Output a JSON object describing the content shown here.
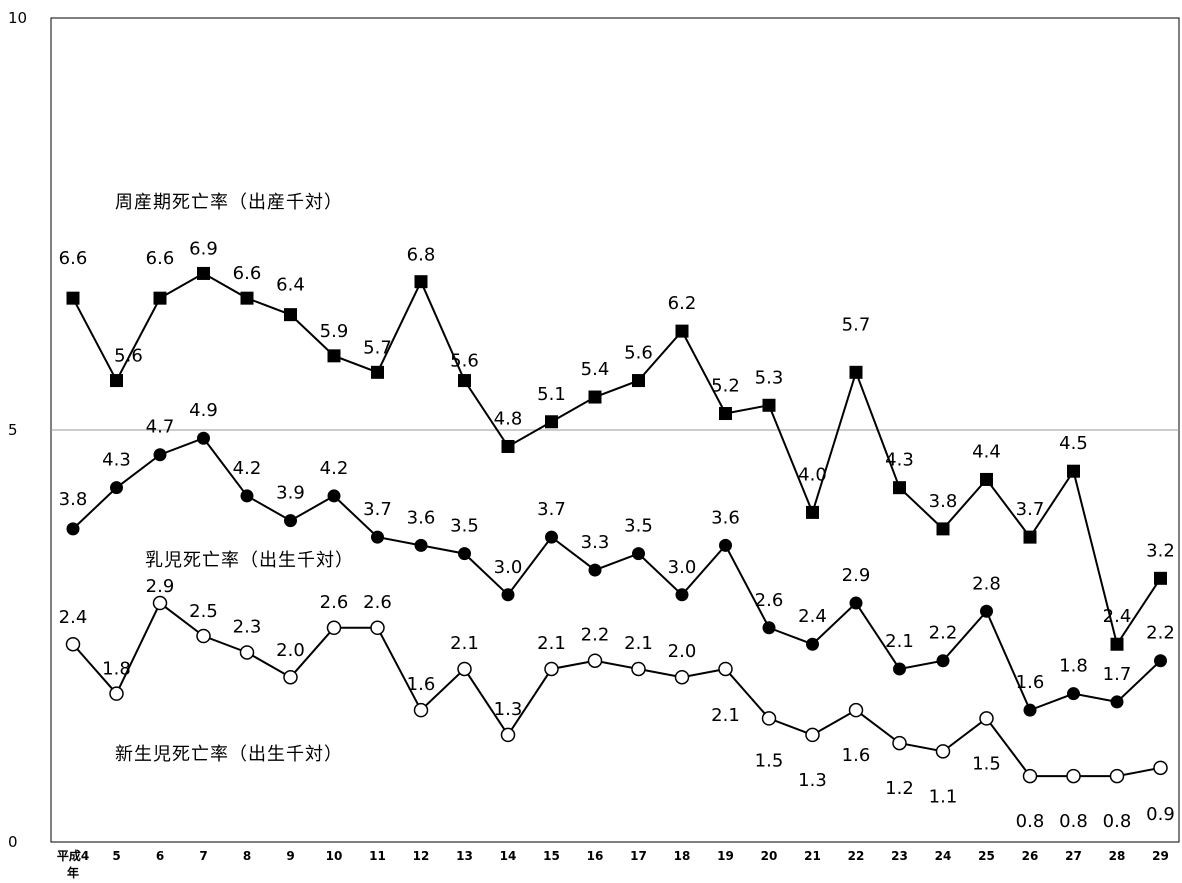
{
  "chart_data": {
    "type": "line",
    "title": "",
    "xlabel": "",
    "ylabel": "",
    "ylim": [
      0,
      10
    ],
    "y_ticks": [
      "0",
      "5",
      "10"
    ],
    "x_first_label_line1": "平成4",
    "x_first_label_line2": "年",
    "categories": [
      "平成4年",
      "5",
      "6",
      "7",
      "8",
      "9",
      "10",
      "11",
      "12",
      "13",
      "14",
      "15",
      "16",
      "17",
      "18",
      "19",
      "20",
      "21",
      "22",
      "23",
      "24",
      "25",
      "26",
      "27",
      "28",
      "29"
    ],
    "grid": "horizontal line at 5",
    "series": [
      {
        "name": "周産期死亡率（出産千対）",
        "marker": "filled-square",
        "values": [
          6.6,
          5.6,
          6.6,
          6.9,
          6.6,
          6.4,
          5.9,
          5.7,
          6.8,
          5.6,
          4.8,
          5.1,
          5.4,
          5.6,
          6.2,
          5.2,
          5.3,
          4.0,
          5.7,
          4.3,
          3.8,
          4.4,
          3.7,
          4.5,
          2.4,
          3.2
        ],
        "labels": [
          "6.6",
          "5.6",
          "6.6",
          "6.9",
          "6.6",
          "6.4",
          "5.9",
          "5.7",
          "6.8",
          "5.6",
          "4.8",
          "5.1",
          "5.4",
          "5.6",
          "6.2",
          "5.2",
          "5.3",
          "4.0",
          "5.7",
          "4.3",
          "3.8",
          "4.4",
          "3.7",
          "4.5",
          "2.4",
          "3.2"
        ]
      },
      {
        "name": "乳児死亡率（出生千対）",
        "marker": "filled-circle",
        "values": [
          3.8,
          4.3,
          4.7,
          4.9,
          4.2,
          3.9,
          4.2,
          3.7,
          3.6,
          3.5,
          3.0,
          3.7,
          3.3,
          3.5,
          3.0,
          3.6,
          2.6,
          2.4,
          2.9,
          2.1,
          2.2,
          2.8,
          1.6,
          1.8,
          1.7,
          2.2
        ],
        "labels": [
          "3.8",
          "4.3",
          "4.7",
          "4.9",
          "4.2",
          "3.9",
          "4.2",
          "3.7",
          "3.6",
          "3.5",
          "3.0",
          "3.7",
          "3.3",
          "3.5",
          "3.0",
          "3.6",
          "2.6",
          "2.4",
          "2.9",
          "2.1",
          "2.2",
          "2.8",
          "1.6",
          "1.8",
          "1.7",
          "2.2"
        ]
      },
      {
        "name": "新生児死亡率（出生千対）",
        "marker": "open-circle",
        "values": [
          2.4,
          1.8,
          2.9,
          2.5,
          2.3,
          2.0,
          2.6,
          2.6,
          1.6,
          2.1,
          1.3,
          2.1,
          2.2,
          2.1,
          2.0,
          2.1,
          1.5,
          1.3,
          1.6,
          1.2,
          1.1,
          1.5,
          0.8,
          0.8,
          0.8,
          0.9
        ],
        "labels": [
          "2.4",
          "1.8",
          "2.9",
          "2.5",
          "2.3",
          "2.0",
          "2.6",
          "2.6",
          "1.6",
          "2.1",
          "1.3",
          "2.1",
          "2.2",
          "2.1",
          "2.0",
          "2.1",
          "1.5",
          "1.3",
          "1.6",
          "1.2",
          "1.1",
          "1.5",
          "0.8",
          "0.8",
          "0.8",
          "0.9"
        ]
      }
    ]
  }
}
